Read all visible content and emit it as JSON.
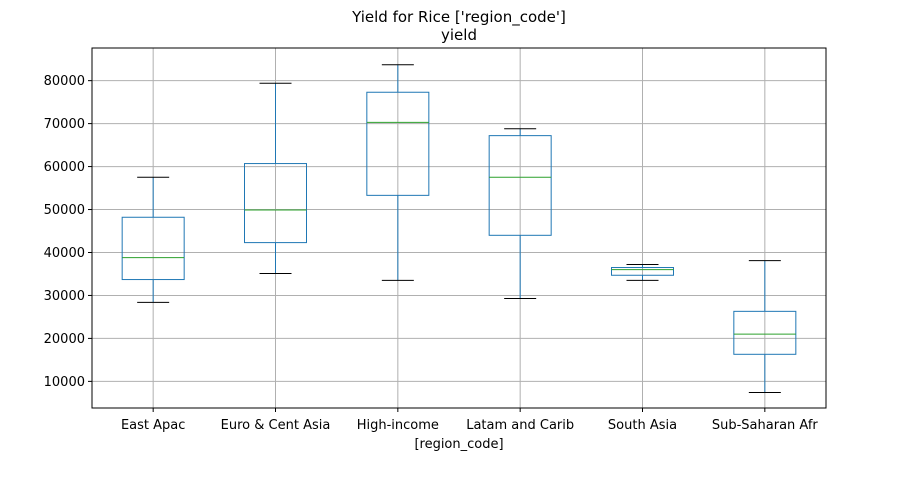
{
  "chart_data": {
    "type": "box",
    "title": "Yield for Rice ['region_code']",
    "subtitle": "yield",
    "xlabel": "[region_code]",
    "ylabel": "",
    "ylim": [
      3800,
      87600
    ],
    "yticks": [
      10000,
      20000,
      30000,
      40000,
      50000,
      60000,
      70000,
      80000
    ],
    "ytick_labels": [
      "10000",
      "20000",
      "30000",
      "40000",
      "50000",
      "60000",
      "70000",
      "80000"
    ],
    "grid": true,
    "categories": [
      "East Apac",
      "Euro & Cent Asia",
      "High-income",
      "Latam and Carib",
      "South Asia",
      "Sub-Saharan Afr"
    ],
    "boxes": [
      {
        "whisker_low": 28400,
        "q1": 33700,
        "median": 38800,
        "q3": 48200,
        "whisker_high": 57500
      },
      {
        "whisker_low": 35100,
        "q1": 42300,
        "median": 49900,
        "q3": 60700,
        "whisker_high": 79400
      },
      {
        "whisker_low": 33500,
        "q1": 53300,
        "median": 70300,
        "q3": 77300,
        "whisker_high": 83700
      },
      {
        "whisker_low": 29300,
        "q1": 44000,
        "median": 57500,
        "q3": 67200,
        "whisker_high": 68800
      },
      {
        "whisker_low": 33500,
        "q1": 34700,
        "median": 36000,
        "q3": 36500,
        "whisker_high": 37200
      },
      {
        "whisker_low": 7400,
        "q1": 16300,
        "median": 21000,
        "q3": 26300,
        "whisker_high": 38100
      }
    ],
    "colors": {
      "box": "#1f77b4",
      "median": "#2ca02c",
      "whisker_cap": "#000000",
      "grid": "#b0b0b0"
    }
  }
}
